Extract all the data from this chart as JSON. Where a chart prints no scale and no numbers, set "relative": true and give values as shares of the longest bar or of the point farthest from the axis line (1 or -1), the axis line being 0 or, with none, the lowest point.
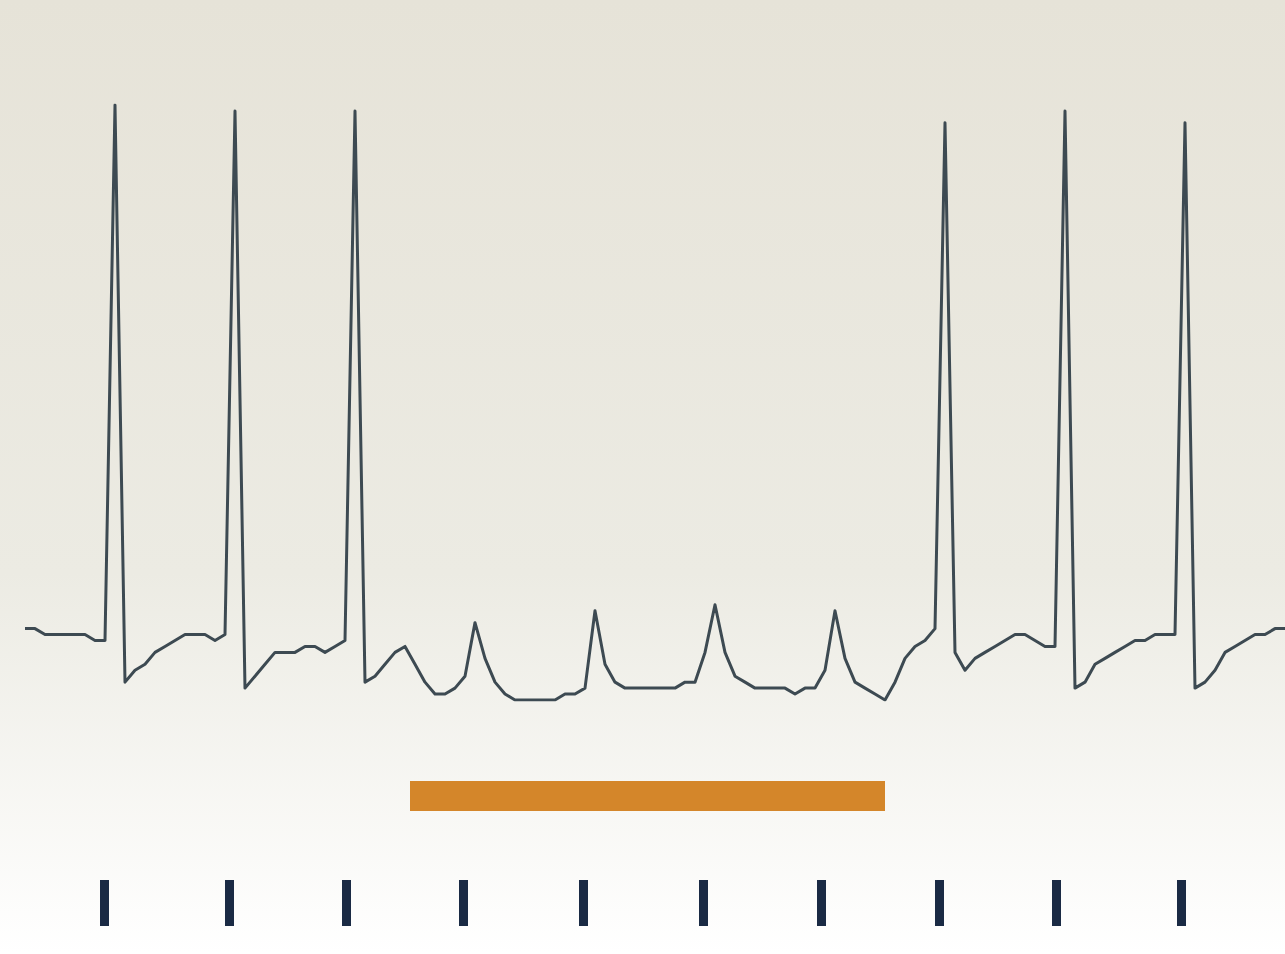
{
  "chart_data": {
    "type": "line",
    "relative": true,
    "categories": [
      null,
      null,
      null,
      null,
      null,
      null,
      null,
      null,
      null,
      null,
      null,
      null,
      null,
      null,
      null,
      null,
      null,
      null,
      null,
      null,
      null,
      null,
      null,
      null,
      null,
      null,
      null,
      null,
      null,
      null,
      null,
      null,
      null,
      null,
      null,
      null,
      null,
      null,
      null,
      null,
      null,
      null,
      null,
      null,
      null,
      null,
      null,
      null,
      null,
      null,
      null,
      null,
      null,
      null,
      null,
      null,
      null,
      null,
      null,
      null,
      null,
      null,
      null,
      null,
      null,
      null,
      null,
      null,
      null,
      null,
      null,
      null,
      null,
      null,
      null,
      null,
      null,
      null,
      null,
      null,
      null,
      null,
      null,
      null,
      null,
      null,
      null,
      null,
      null,
      null,
      null,
      null,
      null,
      null,
      null,
      null,
      null,
      null,
      null,
      null,
      null,
      null,
      null,
      null,
      null,
      null,
      null,
      null,
      null,
      null,
      null,
      null,
      null,
      null,
      null,
      null,
      null,
      null,
      null,
      null,
      null,
      null,
      null,
      null,
      null,
      null,
      null
    ],
    "series": [
      {
        "color": "#3d4a52",
        "values": [
          0.12,
          0.12,
          0.11,
          0.11,
          0.11,
          0.11,
          0.11,
          0.1,
          0.1,
          1,
          0.03,
          0.05,
          0.06,
          0.08,
          0.09,
          0.1,
          0.11,
          0.11,
          0.11,
          0.1,
          0.11,
          0.99,
          0.02,
          0.04,
          0.06,
          0.08,
          0.08,
          0.08,
          0.09,
          0.09,
          0.08,
          0.09,
          0.1,
          0.99,
          0.03,
          0.04,
          0.06,
          0.08,
          0.09,
          0.06,
          0.03,
          0.01,
          0.01,
          0.02,
          0.04,
          0.13,
          0.07,
          0.03,
          0.01,
          0,
          0,
          0,
          0,
          0,
          0.01,
          0.01,
          0.02,
          0.15,
          0.06,
          0.03,
          0.02,
          0.02,
          0.02,
          0.02,
          0.02,
          0.02,
          0.03,
          0.03,
          0.08,
          0.16,
          0.08,
          0.04,
          0.03,
          0.02,
          0.02,
          0.02,
          0.02,
          0.01,
          0.02,
          0.02,
          0.05,
          0.15,
          0.07,
          0.03,
          0.02,
          0.01,
          0,
          0.03,
          0.07,
          0.09,
          0.1,
          0.12,
          0.97,
          0.08,
          0.05,
          0.07,
          0.08,
          0.09,
          0.1,
          0.11,
          0.11,
          0.1,
          0.09,
          0.09,
          0.99,
          0.02,
          0.03,
          0.06,
          0.07,
          0.08,
          0.09,
          0.1,
          0.1,
          0.11,
          0.11,
          0.11,
          0.97,
          0.02,
          0.03,
          0.05,
          0.08,
          0.09,
          0.1,
          0.11,
          0.11,
          0.12,
          0.12
        ]
      }
    ]
  }
}
